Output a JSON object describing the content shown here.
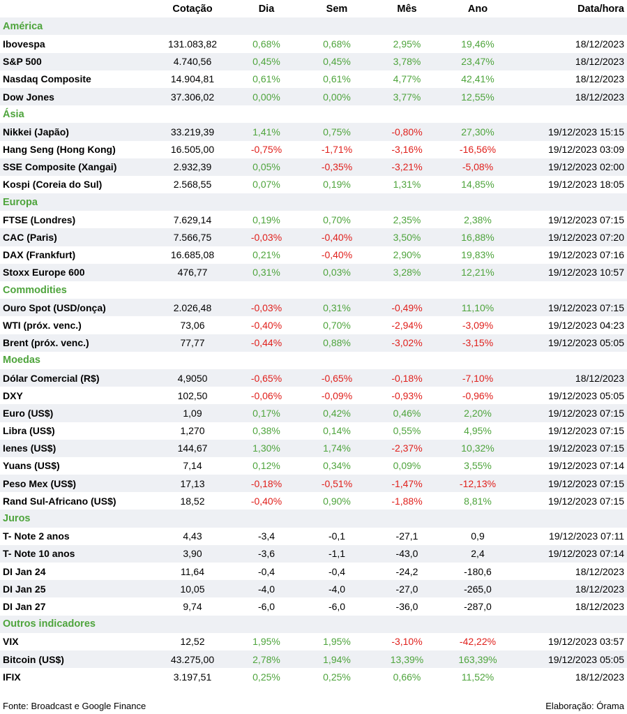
{
  "header": {
    "cotacao": "Cotação",
    "dia": "Dia",
    "sem": "Sem",
    "mes": "Mês",
    "ano": "Ano",
    "data": "Data/hora"
  },
  "colors": {
    "positive": "#4ea43c",
    "negative": "#e0201c",
    "section": "#4ea43c",
    "band": "#eef0f4"
  },
  "sections": [
    {
      "title": "América",
      "rows": [
        {
          "name": "Ibovespa",
          "cotacao": "131.083,82",
          "dia": "0,68%",
          "sem": "0,68%",
          "mes": "2,95%",
          "ano": "19,46%",
          "data": "18/12/2023"
        },
        {
          "name": "S&P 500",
          "cotacao": "4.740,56",
          "dia": "0,45%",
          "sem": "0,45%",
          "mes": "3,78%",
          "ano": "23,47%",
          "data": "18/12/2023"
        },
        {
          "name": "Nasdaq Composite",
          "cotacao": "14.904,81",
          "dia": "0,61%",
          "sem": "0,61%",
          "mes": "4,77%",
          "ano": "42,41%",
          "data": "18/12/2023"
        },
        {
          "name": "Dow Jones",
          "cotacao": "37.306,02",
          "dia": "0,00%",
          "sem": "0,00%",
          "mes": "3,77%",
          "ano": "12,55%",
          "data": "18/12/2023"
        }
      ]
    },
    {
      "title": "Ásia",
      "rows": [
        {
          "name": "Nikkei (Japão)",
          "cotacao": "33.219,39",
          "dia": "1,41%",
          "sem": "0,75%",
          "mes": "-0,80%",
          "ano": "27,30%",
          "data": "19/12/2023 15:15"
        },
        {
          "name": "Hang Seng (Hong Kong)",
          "cotacao": "16.505,00",
          "dia": "-0,75%",
          "sem": "-1,71%",
          "mes": "-3,16%",
          "ano": "-16,56%",
          "data": "19/12/2023 03:09"
        },
        {
          "name": "SSE Composite (Xangai)",
          "cotacao": "2.932,39",
          "dia": "0,05%",
          "sem": "-0,35%",
          "mes": "-3,21%",
          "ano": "-5,08%",
          "data": "19/12/2023 02:00"
        },
        {
          "name": "Kospi (Coreia do Sul)",
          "cotacao": "2.568,55",
          "dia": "0,07%",
          "sem": "0,19%",
          "mes": "1,31%",
          "ano": "14,85%",
          "data": "19/12/2023 18:05"
        }
      ]
    },
    {
      "title": "Europa",
      "rows": [
        {
          "name": "FTSE (Londres)",
          "cotacao": "7.629,14",
          "dia": "0,19%",
          "sem": "0,70%",
          "mes": "2,35%",
          "ano": "2,38%",
          "data": "19/12/2023 07:15"
        },
        {
          "name": "CAC (Paris)",
          "cotacao": "7.566,75",
          "dia": "-0,03%",
          "sem": "-0,40%",
          "mes": "3,50%",
          "ano": "16,88%",
          "data": "19/12/2023 07:20"
        },
        {
          "name": "DAX (Frankfurt)",
          "cotacao": "16.685,08",
          "dia": "0,21%",
          "sem": "-0,40%",
          "mes": "2,90%",
          "ano": "19,83%",
          "data": "19/12/2023 07:16"
        },
        {
          "name": "Stoxx Europe 600",
          "cotacao": "476,77",
          "dia": "0,31%",
          "sem": "0,03%",
          "mes": "3,28%",
          "ano": "12,21%",
          "data": "19/12/2023 10:57"
        }
      ]
    },
    {
      "title": "Commodities",
      "rows": [
        {
          "name": "Ouro Spot (USD/onça)",
          "cotacao": "2.026,48",
          "dia": "-0,03%",
          "sem": "0,31%",
          "mes": "-0,49%",
          "ano": "11,10%",
          "data": "19/12/2023 07:15"
        },
        {
          "name": "WTI (próx. venc.)",
          "cotacao": "73,06",
          "dia": "-0,40%",
          "sem": "0,70%",
          "mes": "-2,94%",
          "ano": "-3,09%",
          "data": "19/12/2023 04:23"
        },
        {
          "name": "Brent (próx. venc.)",
          "cotacao": "77,77",
          "dia": "-0,44%",
          "sem": "0,88%",
          "mes": "-3,02%",
          "ano": "-3,15%",
          "data": "19/12/2023 05:05"
        }
      ]
    },
    {
      "title": "Moedas",
      "rows": [
        {
          "name": "Dólar Comercial (R$)",
          "cotacao": "4,9050",
          "dia": "-0,65%",
          "sem": "-0,65%",
          "mes": "-0,18%",
          "ano": "-7,10%",
          "data": "18/12/2023"
        },
        {
          "name": "DXY",
          "cotacao": "102,50",
          "dia": "-0,06%",
          "sem": "-0,09%",
          "mes": "-0,93%",
          "ano": "-0,96%",
          "data": "19/12/2023 05:05"
        },
        {
          "name": "Euro (US$)",
          "cotacao": "1,09",
          "dia": "0,17%",
          "sem": "0,42%",
          "mes": "0,46%",
          "ano": "2,20%",
          "data": "19/12/2023 07:15"
        },
        {
          "name": "Libra (US$)",
          "cotacao": "1,270",
          "dia": "0,38%",
          "sem": "0,14%",
          "mes": "0,55%",
          "ano": "4,95%",
          "data": "19/12/2023 07:15"
        },
        {
          "name": "Ienes (US$)",
          "cotacao": "144,67",
          "dia": "1,30%",
          "sem": "1,74%",
          "mes": "-2,37%",
          "ano": "10,32%",
          "data": "19/12/2023 07:15"
        },
        {
          "name": "Yuans (US$)",
          "cotacao": "7,14",
          "dia": "0,12%",
          "sem": "0,34%",
          "mes": "0,09%",
          "ano": "3,55%",
          "data": "19/12/2023 07:14"
        },
        {
          "name": "Peso Mex (US$)",
          "cotacao": "17,13",
          "dia": "-0,18%",
          "sem": "-0,51%",
          "mes": "-1,47%",
          "ano": "-12,13%",
          "data": "19/12/2023 07:15"
        },
        {
          "name": "Rand Sul-Africano (US$)",
          "cotacao": "18,52",
          "dia": "-0,40%",
          "sem": "0,90%",
          "mes": "-1,88%",
          "ano": "8,81%",
          "data": "19/12/2023 07:15"
        }
      ]
    },
    {
      "title": "Juros",
      "plain": true,
      "rows": [
        {
          "name": "T- Note 2 anos",
          "cotacao": "4,43",
          "dia": "-3,4",
          "sem": "-0,1",
          "mes": "-27,1",
          "ano": "0,9",
          "data": "19/12/2023 07:11"
        },
        {
          "name": "T- Note 10 anos",
          "cotacao": "3,90",
          "dia": "-3,6",
          "sem": "-1,1",
          "mes": "-43,0",
          "ano": "2,4",
          "data": "19/12/2023 07:14"
        },
        {
          "name": "DI Jan 24",
          "cotacao": "11,64",
          "dia": "-0,4",
          "sem": "-0,4",
          "mes": "-24,2",
          "ano": "-180,6",
          "data": "18/12/2023"
        },
        {
          "name": "DI Jan 25",
          "cotacao": "10,05",
          "dia": "-4,0",
          "sem": "-4,0",
          "mes": "-27,0",
          "ano": "-265,0",
          "data": "18/12/2023"
        },
        {
          "name": "DI Jan 27",
          "cotacao": "9,74",
          "dia": "-6,0",
          "sem": "-6,0",
          "mes": "-36,0",
          "ano": "-287,0",
          "data": "18/12/2023"
        }
      ]
    },
    {
      "title": "Outros indicadores",
      "rows": [
        {
          "name": "VIX",
          "cotacao": "12,52",
          "dia": "1,95%",
          "sem": "1,95%",
          "mes": "-3,10%",
          "ano": "-42,22%",
          "data": "19/12/2023 03:57"
        },
        {
          "name": "Bitcoin (US$)",
          "cotacao": "43.275,00",
          "dia": "2,78%",
          "sem": "1,94%",
          "mes": "13,39%",
          "ano": "163,39%",
          "data": "19/12/2023 05:05"
        },
        {
          "name": "IFIX",
          "cotacao": "3.197,51",
          "dia": "0,25%",
          "sem": "0,25%",
          "mes": "0,66%",
          "ano": "11,52%",
          "data": "18/12/2023"
        }
      ]
    }
  ],
  "footer": {
    "source": "Fonte: Broadcast e Google Finance",
    "credit": "Elaboração: Órama"
  }
}
